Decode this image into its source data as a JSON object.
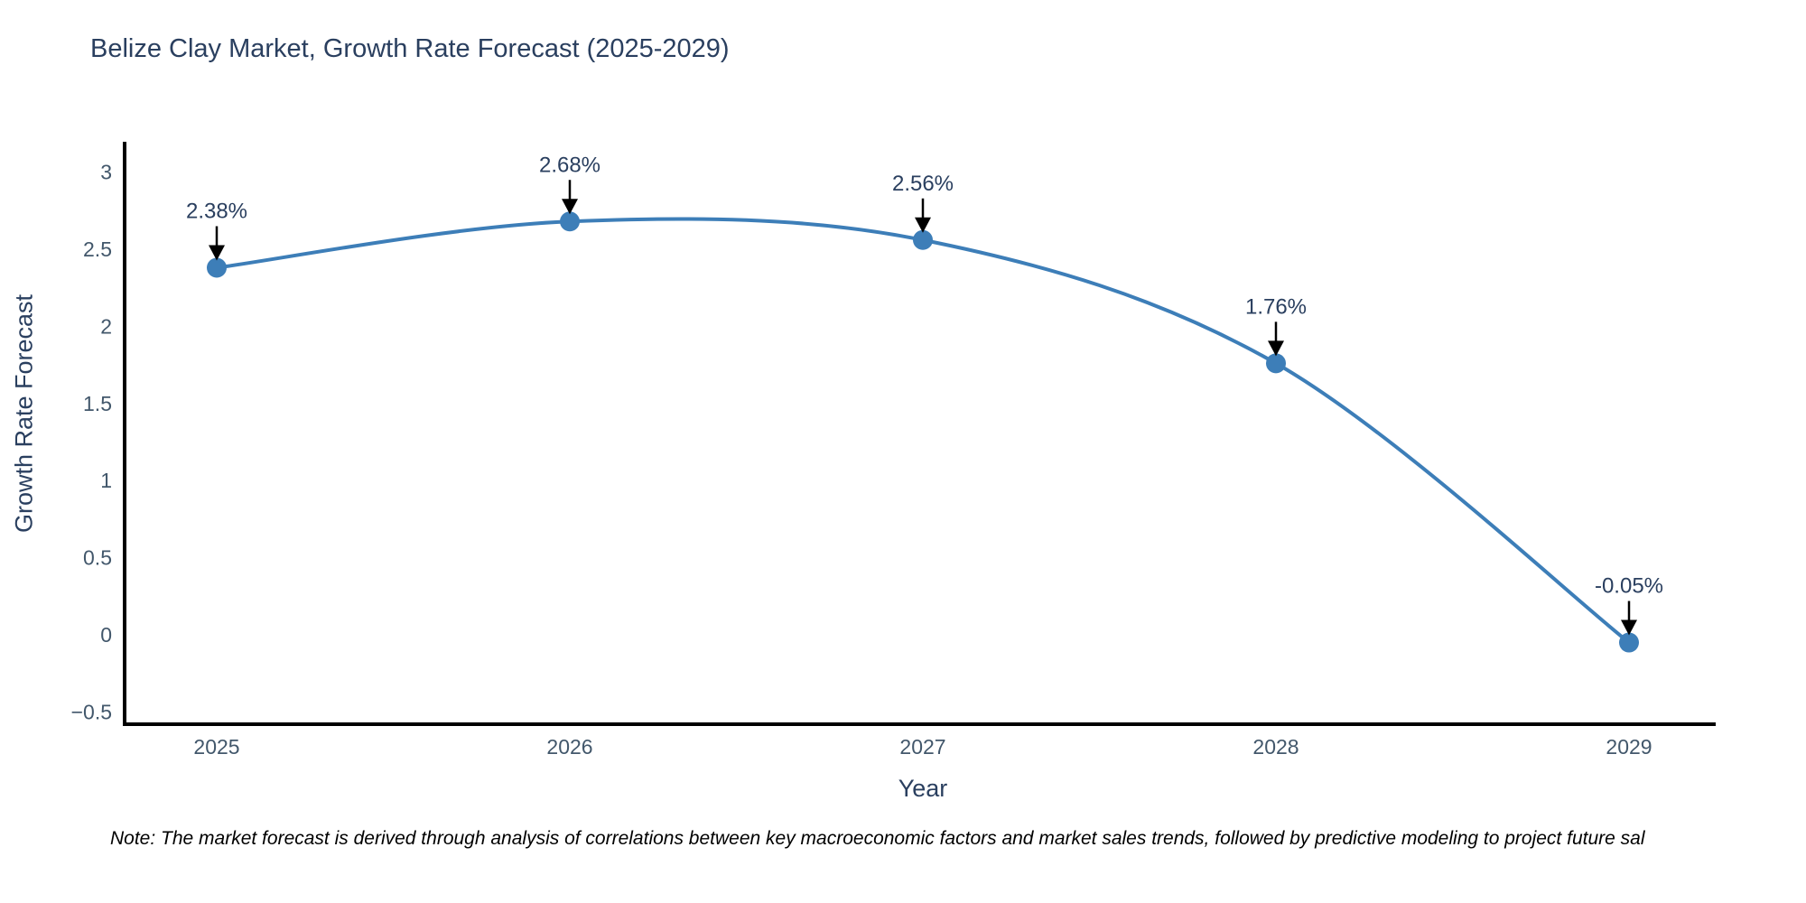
{
  "note": "Note: The market forecast is derived through analysis of correlations between key macroeconomic factors and market sales trends, followed by predictive modeling to project future sal",
  "chart_data": {
    "type": "line",
    "title": "Belize Clay Market, Growth Rate Forecast (2025-2029)",
    "xlabel": "Year",
    "ylabel": "Growth Rate Forecast",
    "x": [
      "2025",
      "2026",
      "2027",
      "2028",
      "2029"
    ],
    "series": [
      {
        "name": "Growth Rate Forecast",
        "values": [
          2.38,
          2.68,
          2.56,
          1.76,
          -0.05
        ],
        "point_labels": [
          "2.38%",
          "2.68%",
          "2.56%",
          "1.76%",
          "-0.05%"
        ]
      }
    ],
    "line_shape": "spline",
    "markers": true,
    "annotation_style": "arrow-down-to-point",
    "ylim": [
      -0.58,
      3.18
    ],
    "yticks": {
      "values": [
        3,
        2.5,
        2,
        1.5,
        1,
        0.5,
        0,
        -0.5
      ],
      "labels": [
        "3",
        "2.5",
        "2",
        "1.5",
        "1",
        "0.5",
        "0",
        "−0.5"
      ]
    },
    "grid": false,
    "legend": "none",
    "colors": {
      "line": "#3d7eb8",
      "marker": "#3d7eb8",
      "axis": "#000000",
      "title": "#2a3f5f",
      "tick_label": "#42576b",
      "annotation_text": "#2a3f5f",
      "annotation_arrow": "#000000",
      "note_text": "#000000",
      "background": "#ffffff"
    }
  }
}
